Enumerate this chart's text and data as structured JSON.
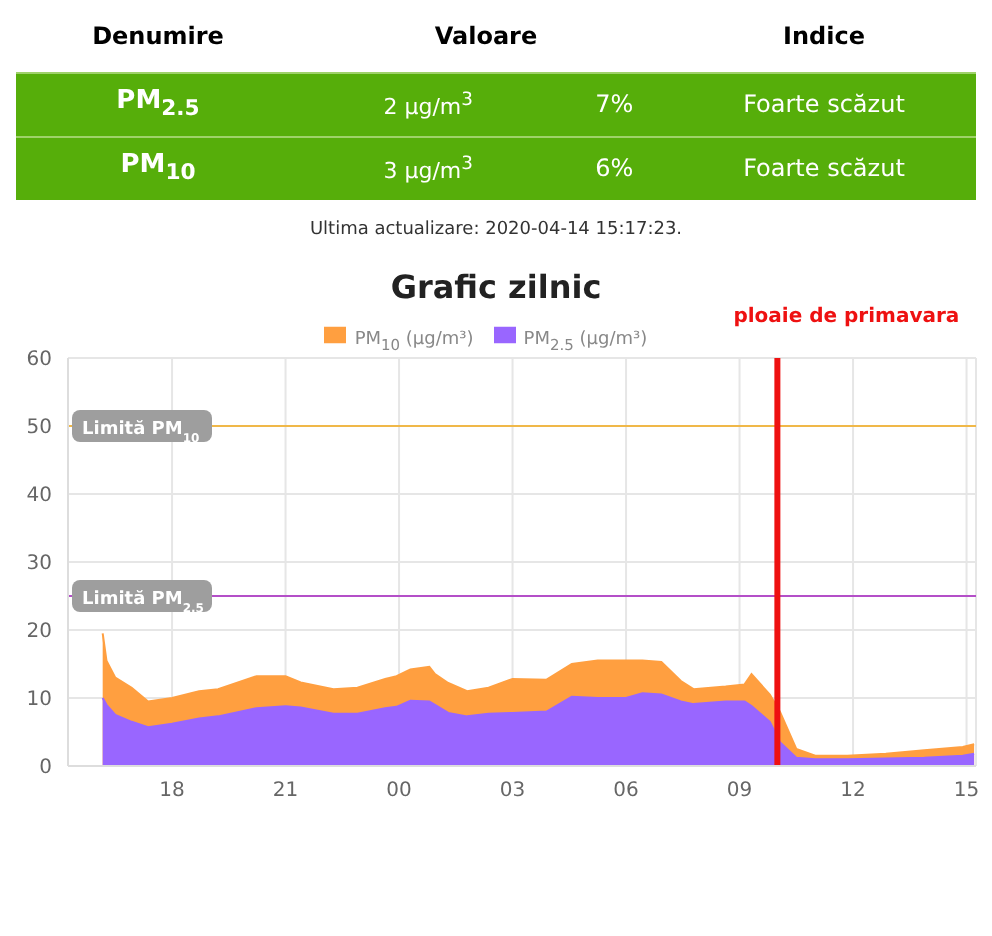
{
  "chart_data": [
    {
      "type": "other",
      "annotations": [
        "Denumire",
        "Valoare",
        "Indice",
        "PM$_{2.5}$",
        "2 μg/m$^{3}$",
        "7%",
        "Foarte scăzut",
        "PM$_{10}$",
        "3 μg/m$^{3}$",
        "6%",
        "Foarte scăzut",
        "Ultima actualizare: 2020-04-14 15:17:23."
      ]
    },
    {
      "type": "area",
      "title": "Grafic zilnic",
      "legend": "top",
      "grid": true,
      "x": [
        "2020-04-13T16:10",
        "2020-04-13T16:16",
        "2020-04-13T16:30",
        "2020-04-13T16:56",
        "2020-04-13T17:22",
        "2020-04-13T18:00",
        "2020-04-13T18:43",
        "2020-04-13T19:13",
        "2020-04-13T20:14",
        "2020-04-13T21:00",
        "2020-04-13T21:24",
        "2020-04-13T22:16",
        "2020-04-13T22:54",
        "2020-04-13T23:38",
        "2020-04-13T23:56",
        "2020-04-14T00:18",
        "2020-04-14T00:48",
        "2020-04-14T00:57",
        "2020-04-14T01:18",
        "2020-04-14T01:48",
        "2020-04-14T02:22",
        "2020-04-14T03:00",
        "2020-04-14T03:54",
        "2020-04-14T04:34",
        "2020-04-14T05:15",
        "2020-04-14T06:00",
        "2020-04-14T06:26",
        "2020-04-14T06:56",
        "2020-04-14T07:27",
        "2020-04-14T07:47",
        "2020-04-14T08:38",
        "2020-04-14T09:08",
        "2020-04-14T09:19",
        "2020-04-14T09:48",
        "2020-04-14T10:04",
        "2020-04-14T10:30",
        "2020-04-14T11:00",
        "2020-04-14T11:51",
        "2020-04-14T12:52",
        "2020-04-14T13:53",
        "2020-04-14T14:54",
        "2020-04-14T15:12"
      ],
      "series": [
        {
          "name": "PM$_{10}$ (μg/m³)",
          "color": "#ff9f40",
          "values": [
            19.5,
            15.5,
            13,
            11.5,
            9.5,
            10,
            11,
            11.3,
            13.2,
            13.2,
            12.3,
            11.3,
            11.5,
            12.8,
            13.2,
            14.2,
            14.6,
            13.5,
            12.2,
            11,
            11.5,
            12.8,
            12.7,
            15,
            15.5,
            15.5,
            15.5,
            15.3,
            12.5,
            11.3,
            11.7,
            12,
            13.5,
            10.5,
            8,
            2.5,
            1.5,
            1.5,
            1.8,
            2.3,
            2.8,
            3.2
          ]
        },
        {
          "name": "PM$_{2.5}$ (μg/m³)",
          "color": "#9966ff",
          "values": [
            10,
            9,
            7.5,
            6.5,
            5.7,
            6.2,
            7,
            7.3,
            8.5,
            8.8,
            8.6,
            7.7,
            7.7,
            8.5,
            8.7,
            9.6,
            9.5,
            9,
            7.8,
            7.3,
            7.7,
            7.8,
            8,
            10.2,
            10,
            10,
            10.7,
            10.5,
            9.5,
            9.1,
            9.5,
            9.5,
            8.8,
            6.5,
            3.5,
            1.2,
            1,
            1,
            1.1,
            1.2,
            1.5,
            1.8
          ]
        }
      ],
      "xlim": [
        "2020-04-13T15:15",
        "2020-04-14T15:15"
      ],
      "xticks": [
        {
          "value": "2020-04-13T18:00",
          "label": "18"
        },
        {
          "value": "2020-04-13T21:00",
          "label": "21"
        },
        {
          "value": "2020-04-14T00:00",
          "label": "00"
        },
        {
          "value": "2020-04-14T03:00",
          "label": "03"
        },
        {
          "value": "2020-04-14T06:00",
          "label": "06"
        },
        {
          "value": "2020-04-14T09:00",
          "label": "09"
        },
        {
          "value": "2020-04-14T12:00",
          "label": "12"
        },
        {
          "value": "2020-04-14T15:00",
          "label": "15"
        }
      ],
      "ylim": [
        0,
        60
      ],
      "yticks": [
        0,
        10,
        20,
        30,
        40,
        50,
        60
      ],
      "ref_lines": [
        {
          "axis": "y",
          "value": 50,
          "label": "Limită PM$_{10}$",
          "color": "#f0b849"
        },
        {
          "axis": "y",
          "value": 25,
          "label": "Limită PM$_{2.5}$",
          "color": "#b44fc8"
        },
        {
          "axis": "x",
          "value": "2020-04-14T10:00",
          "label": "ploaie de primavara",
          "color": "#ee1111"
        }
      ]
    }
  ]
}
